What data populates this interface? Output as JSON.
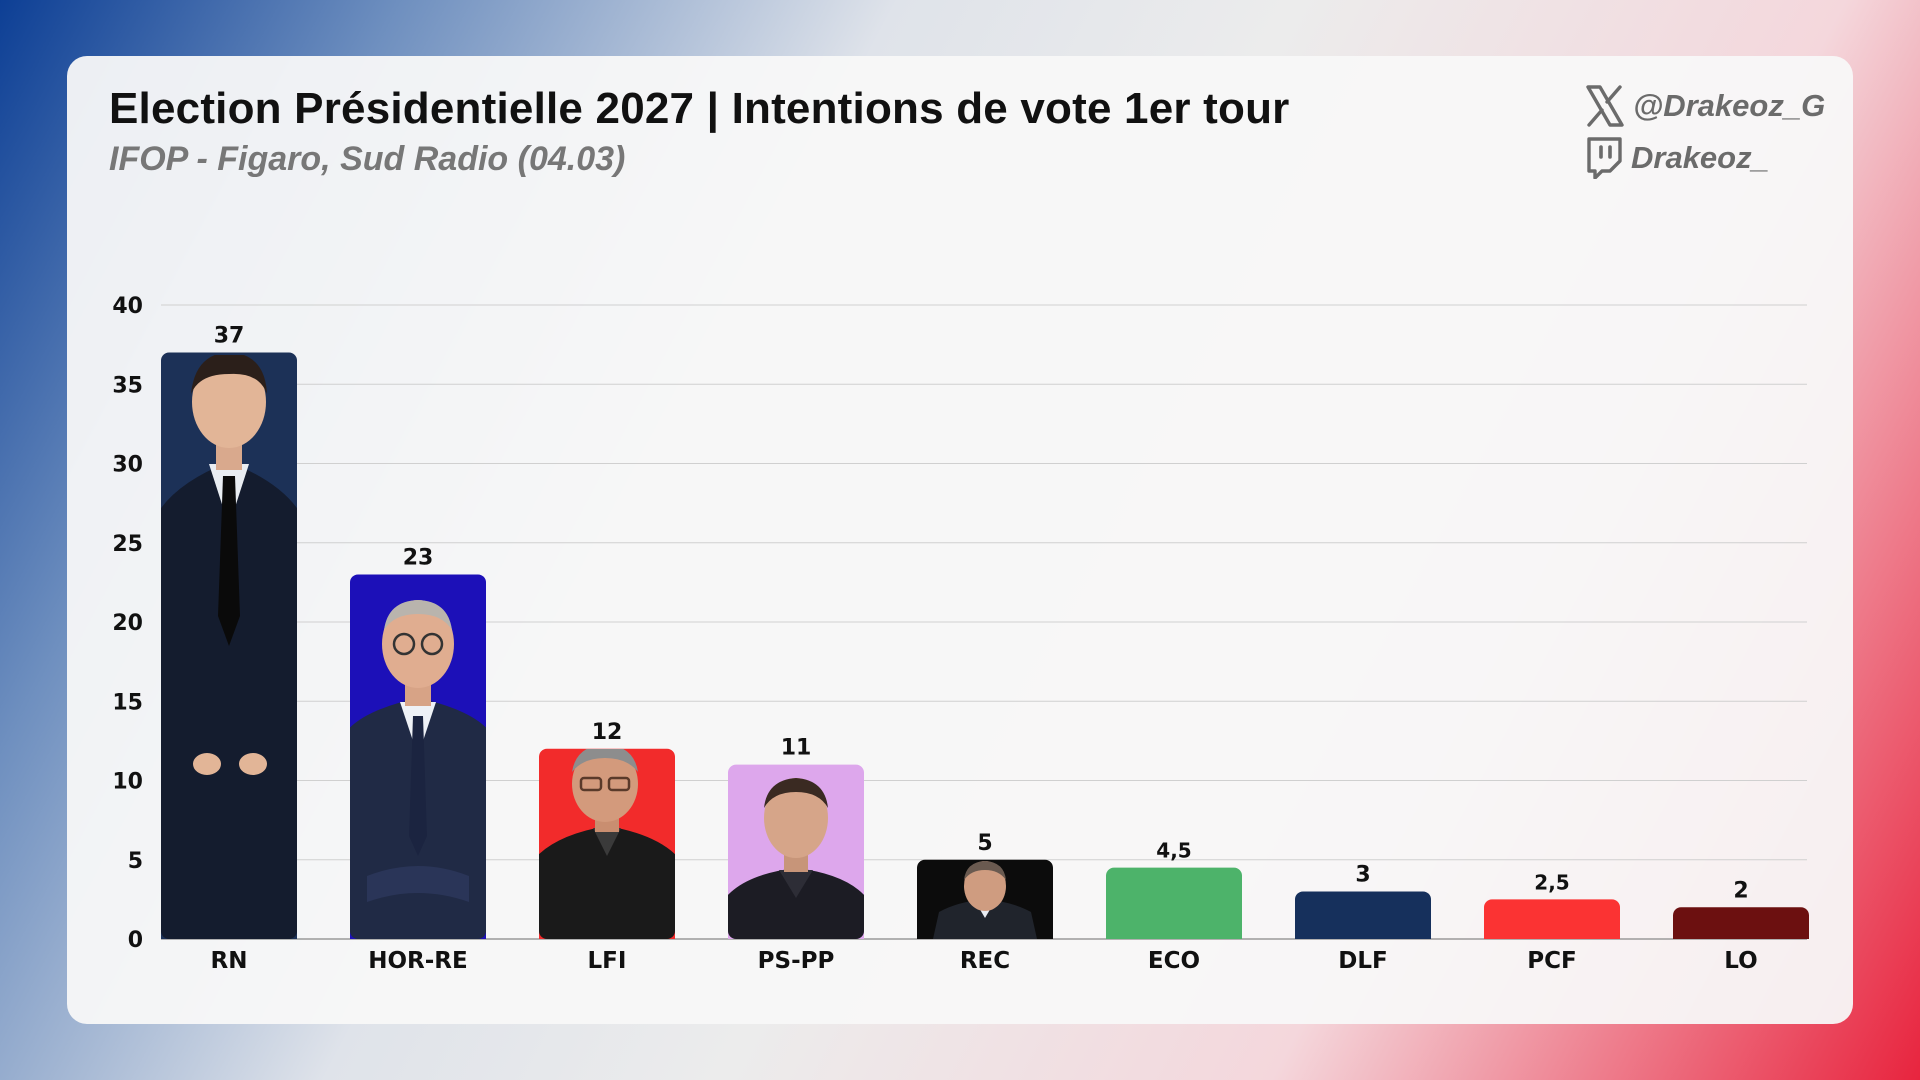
{
  "header": {
    "title": "Election Présidentielle 2027 | Intentions de vote 1er tour",
    "subtitle": "IFOP - Figaro, Sud Radio (04.03)"
  },
  "social": {
    "x_handle": "@Drakeoz_G",
    "x_icon": "x-logo-icon",
    "twitch_handle": "Drakeoz_",
    "twitch_icon": "twitch-logo-icon"
  },
  "chart_data": {
    "type": "bar",
    "title": "Election Présidentielle 2027 | Intentions de vote 1er tour",
    "subtitle": "IFOP - Figaro, Sud Radio (04.03)",
    "xlabel": "",
    "ylabel": "",
    "ylim": [
      0,
      40
    ],
    "yticks": [
      0,
      5,
      10,
      15,
      20,
      25,
      30,
      35,
      40
    ],
    "grid": true,
    "categories": [
      "RN",
      "HOR-RE",
      "LFI",
      "PS-PP",
      "REC",
      "ECO",
      "DLF",
      "PCF",
      "LO"
    ],
    "values": [
      37,
      23,
      12,
      11,
      5,
      4.5,
      3,
      2.5,
      2
    ],
    "value_labels": [
      "37",
      "23",
      "12",
      "11",
      "5",
      "4,5",
      "3",
      "2,5",
      "2"
    ],
    "colors": [
      "#1c3157",
      "#1c10b8",
      "#f22b2b",
      "#dda7ec",
      "#0c0c0c",
      "#4db36a",
      "#16305c",
      "#fb3333",
      "#6c1010"
    ],
    "portraits": [
      "portrait-rn-candidate",
      "portrait-hor-re-candidate",
      "portrait-lfi-candidate",
      "portrait-ps-pp-candidate",
      "portrait-rec-candidate",
      null,
      null,
      null,
      null
    ]
  }
}
